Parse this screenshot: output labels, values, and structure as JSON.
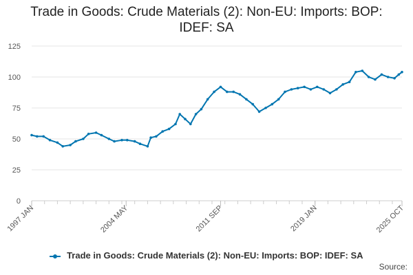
{
  "chart_data": {
    "type": "line",
    "title": "Trade in Goods: Crude Materials (2): Non-EU: Imports: BOP: IDEF: SA",
    "title_lines": [
      "Trade in Goods: Crude Materials (2): Non-EU: Imports: BOP:",
      "IDEF: SA"
    ],
    "xlabel": "",
    "ylabel": "",
    "ylim": [
      0,
      125
    ],
    "yticks": [
      0,
      25,
      50,
      75,
      100,
      125
    ],
    "x_range_months": [
      "1997-01",
      "2025-10"
    ],
    "xtick_labels": [
      {
        "label": "1997 JAN",
        "date": "1997-01"
      },
      {
        "label": "2004 MAY",
        "date": "2004-05"
      },
      {
        "label": "2011 SEP",
        "date": "2011-09"
      },
      {
        "label": "2019 JAN",
        "date": "2019-01"
      },
      {
        "label": "2025 OCT",
        "date": "2025-10"
      }
    ],
    "grid": true,
    "legend_position": "bottom",
    "series": [
      {
        "name": "Trade in Goods: Crude Materials (2): Non-EU: Imports: BOP: IDEF: SA",
        "color": "#0075b0",
        "points": [
          [
            "1997-01",
            53
          ],
          [
            "1997-06",
            52
          ],
          [
            "1997-12",
            52
          ],
          [
            "1998-06",
            49
          ],
          [
            "1999-01",
            47
          ],
          [
            "1999-06",
            44
          ],
          [
            "2000-01",
            45
          ],
          [
            "2000-06",
            48
          ],
          [
            "2001-01",
            50
          ],
          [
            "2001-06",
            54
          ],
          [
            "2002-01",
            55
          ],
          [
            "2002-06",
            53
          ],
          [
            "2003-01",
            50
          ],
          [
            "2003-06",
            48
          ],
          [
            "2004-01",
            49
          ],
          [
            "2004-06",
            49
          ],
          [
            "2005-01",
            48
          ],
          [
            "2005-06",
            46
          ],
          [
            "2006-01",
            44
          ],
          [
            "2006-04",
            51
          ],
          [
            "2006-09",
            52
          ],
          [
            "2007-03",
            56
          ],
          [
            "2007-09",
            58
          ],
          [
            "2008-03",
            62
          ],
          [
            "2008-07",
            70
          ],
          [
            "2008-12",
            66
          ],
          [
            "2009-05",
            62
          ],
          [
            "2009-10",
            70
          ],
          [
            "2010-03",
            74
          ],
          [
            "2010-09",
            82
          ],
          [
            "2011-03",
            88
          ],
          [
            "2011-09",
            92
          ],
          [
            "2012-03",
            88
          ],
          [
            "2012-09",
            88
          ],
          [
            "2013-03",
            86
          ],
          [
            "2013-09",
            82
          ],
          [
            "2014-03",
            78
          ],
          [
            "2014-09",
            72
          ],
          [
            "2015-03",
            75
          ],
          [
            "2015-09",
            78
          ],
          [
            "2016-03",
            82
          ],
          [
            "2016-09",
            88
          ],
          [
            "2017-03",
            90
          ],
          [
            "2017-09",
            91
          ],
          [
            "2018-03",
            92
          ],
          [
            "2018-09",
            90
          ],
          [
            "2019-03",
            92
          ],
          [
            "2019-09",
            90
          ],
          [
            "2020-03",
            87
          ],
          [
            "2020-09",
            90
          ],
          [
            "2021-03",
            94
          ],
          [
            "2021-09",
            96
          ],
          [
            "2022-03",
            104
          ],
          [
            "2022-09",
            105
          ],
          [
            "2023-03",
            100
          ],
          [
            "2023-09",
            98
          ],
          [
            "2024-03",
            102
          ],
          [
            "2024-09",
            100
          ],
          [
            "2025-03",
            99
          ],
          [
            "2025-07",
            102
          ],
          [
            "2025-10",
            104
          ]
        ]
      }
    ]
  },
  "legend": {
    "label": "Trade in Goods: Crude Materials (2): Non-EU: Imports: BOP: IDEF: SA"
  },
  "footer": {
    "source_label": "Source:"
  }
}
